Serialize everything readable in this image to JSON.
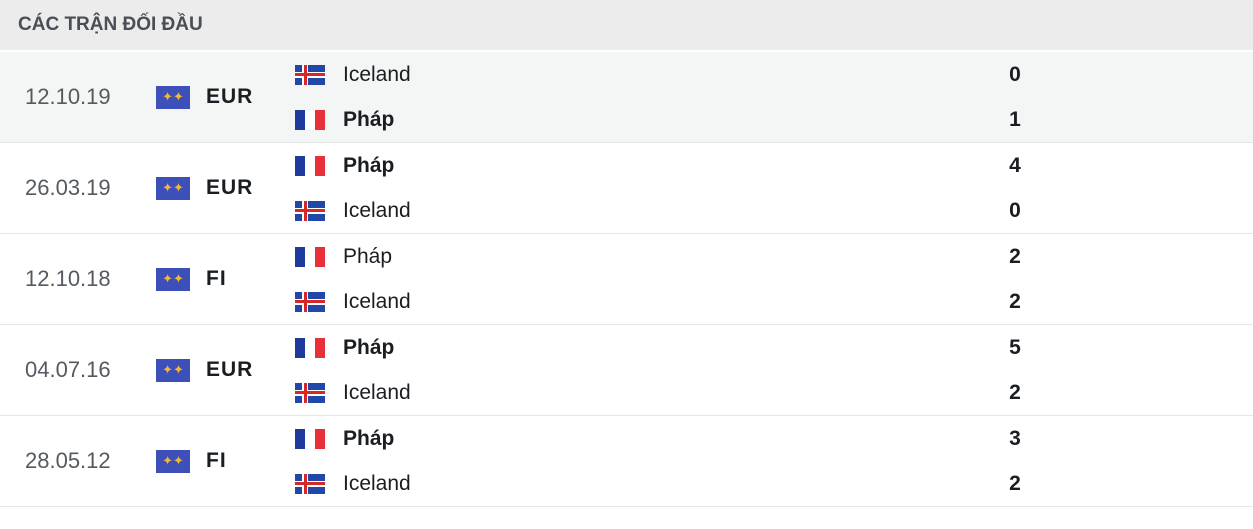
{
  "title": "CÁC TRẬN ĐỐI ĐẦU",
  "colors": {
    "header_bg": "#ececec",
    "highlight_row": "#f4f5f5",
    "competition_icon": "#3d4fb8"
  },
  "matches": [
    {
      "date": "12.10.19",
      "competition": "EUR",
      "home": {
        "name": "Iceland",
        "flag": "iceland",
        "score": "0",
        "winner": false
      },
      "away": {
        "name": "Pháp",
        "flag": "france",
        "score": "1",
        "winner": true
      },
      "highlighted": true
    },
    {
      "date": "26.03.19",
      "competition": "EUR",
      "home": {
        "name": "Pháp",
        "flag": "france",
        "score": "4",
        "winner": true
      },
      "away": {
        "name": "Iceland",
        "flag": "iceland",
        "score": "0",
        "winner": false
      },
      "highlighted": false
    },
    {
      "date": "12.10.18",
      "competition": "FI",
      "home": {
        "name": "Pháp",
        "flag": "france",
        "score": "2",
        "winner": false
      },
      "away": {
        "name": "Iceland",
        "flag": "iceland",
        "score": "2",
        "winner": false
      },
      "highlighted": false
    },
    {
      "date": "04.07.16",
      "competition": "EUR",
      "home": {
        "name": "Pháp",
        "flag": "france",
        "score": "5",
        "winner": true
      },
      "away": {
        "name": "Iceland",
        "flag": "iceland",
        "score": "2",
        "winner": false
      },
      "highlighted": false
    },
    {
      "date": "28.05.12",
      "competition": "FI",
      "home": {
        "name": "Pháp",
        "flag": "france",
        "score": "3",
        "winner": true
      },
      "away": {
        "name": "Iceland",
        "flag": "iceland",
        "score": "2",
        "winner": false
      },
      "highlighted": false
    }
  ]
}
